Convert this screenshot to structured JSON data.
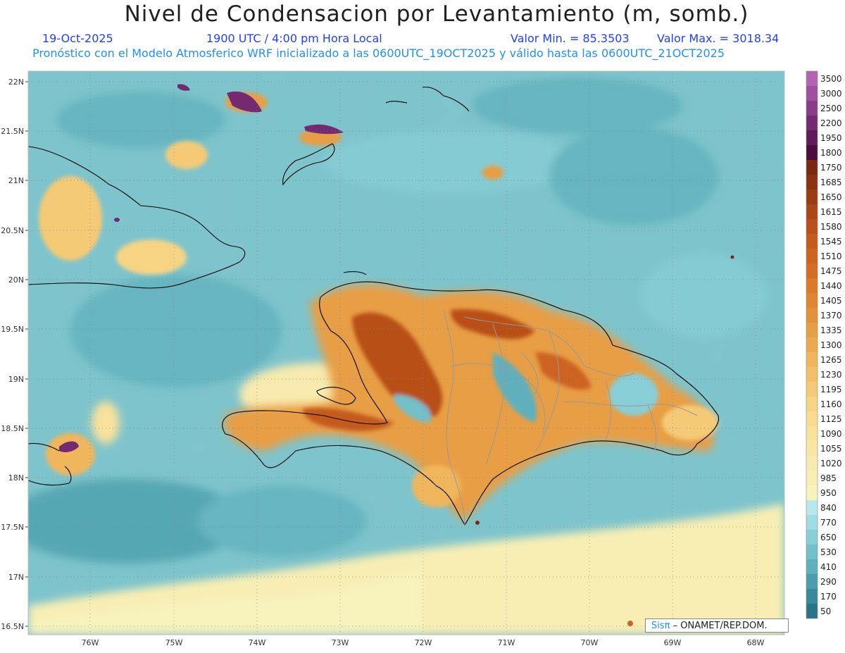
{
  "header": {
    "title": "Nivel de Condensacion por Levantamiento (m, somb.)",
    "date": "19-Oct-2025",
    "time": "1900 UTC / 4:00 pm Hora Local",
    "min_label": "Valor Min. = 85.3503",
    "max_label": "Valor Max. = 3018.34",
    "model_line": "Pronóstico con el Modelo Atmosferico WRF inicializado a las 0600UTC_19OCT2025 y válido hasta las  0600UTC_21OCT2025"
  },
  "axes": {
    "lat_labels": [
      "22N",
      "21.5N",
      "21N",
      "20.5N",
      "20N",
      "19.5N",
      "19N",
      "18.5N",
      "18N",
      "17.5N",
      "17N",
      "16.5N"
    ],
    "lon_labels": [
      "76W",
      "75W",
      "74W",
      "73W",
      "72W",
      "71W",
      "70W",
      "69W",
      "68W"
    ]
  },
  "colorbar": {
    "labels": [
      "3500",
      "3000",
      "2500",
      "2200",
      "1950",
      "1800",
      "1750",
      "1685",
      "1650",
      "1615",
      "1580",
      "1545",
      "1510",
      "1475",
      "1440",
      "1405",
      "1370",
      "1335",
      "1300",
      "1265",
      "1230",
      "1195",
      "1160",
      "1125",
      "1090",
      "1055",
      "1020",
      "985",
      "950",
      "840",
      "770",
      "650",
      "530",
      "410",
      "290",
      "170",
      "50"
    ],
    "colors": [
      "#b463b4",
      "#a0509e",
      "#8a3c88",
      "#742a70",
      "#5e1c58",
      "#4a0e3e",
      "#7a2810",
      "#8c3212",
      "#9c3c14",
      "#ac4616",
      "#b85018",
      "#c45a1c",
      "#cc6420",
      "#d46e24",
      "#da7a2a",
      "#e08632",
      "#e4923a",
      "#e89e44",
      "#ecaa50",
      "#f0b65c",
      "#f2c068",
      "#f4ca76",
      "#f6d484",
      "#f8dc90",
      "#f8e29c",
      "#f8e6a6",
      "#f8eaae",
      "#f8eeb4",
      "#f8f2bc",
      "#b8e8ec",
      "#a0dce2",
      "#88ced6",
      "#72c0ca",
      "#5eb0bc",
      "#4a9eac",
      "#38899a",
      "#2a7488"
    ]
  },
  "credit": {
    "sis": "Sis",
    "pi": "π",
    "org": "– ONAMET/REP.DOM."
  },
  "colors": {
    "title": "#202020",
    "subtitle": "#2040ff",
    "model_line": "#1e90ff",
    "sea_base": "#7cc4cc",
    "land_warm": "#e0883a",
    "coast": "#000000",
    "province_border": "#999999"
  }
}
